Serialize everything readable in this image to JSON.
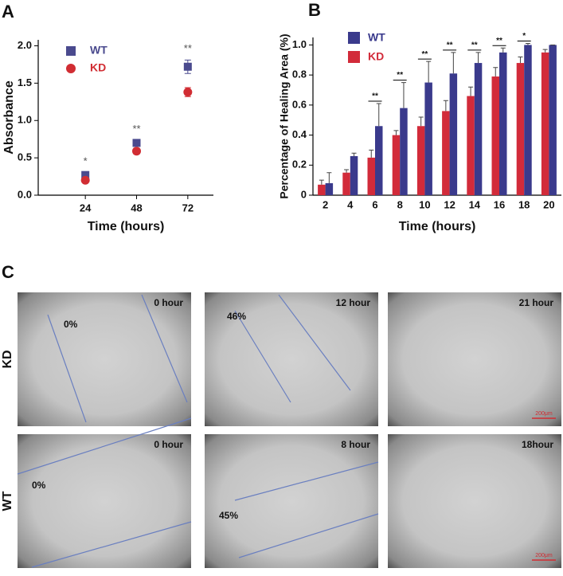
{
  "chart_data": [
    {
      "type": "scatter",
      "panel": "A",
      "y_label": "Absorbance",
      "x_label": "Time (hours)",
      "categories": [
        "24",
        "48",
        "72"
      ],
      "series": [
        {
          "name": "WT",
          "color": "#4a4a8e",
          "marker": "square",
          "values": [
            0.27,
            0.7,
            1.72
          ],
          "errors": [
            0.03,
            0.03,
            0.09
          ]
        },
        {
          "name": "KD",
          "color": "#d12d33",
          "marker": "circle",
          "values": [
            0.2,
            0.59,
            1.38
          ],
          "errors": [
            0.02,
            0.04,
            0.06
          ]
        }
      ],
      "annotations": [
        "*",
        "**",
        "**"
      ],
      "ylim": [
        0,
        2.08
      ],
      "yticks": [
        {
          "value": 0,
          "label": "0.0"
        },
        0.5,
        {
          "value": 1,
          "label": "1.0"
        },
        1.5,
        {
          "value": 2,
          "label": "2.0"
        }
      ]
    },
    {
      "type": "bar",
      "panel": "B",
      "y_label": "Percentage of Healing Area (%)",
      "x_label": "Time (hours)",
      "categories": [
        "2",
        "4",
        "6",
        "8",
        "10",
        "12",
        "14",
        "16",
        "18",
        "20"
      ],
      "series": [
        {
          "name": "KD",
          "color": "#d22b3a",
          "values": [
            0.07,
            0.15,
            0.25,
            0.4,
            0.46,
            0.56,
            0.66,
            0.79,
            0.88,
            0.95
          ],
          "errors": [
            0.03,
            0.02,
            0.05,
            0.03,
            0.06,
            0.07,
            0.06,
            0.06,
            0.04,
            0.02
          ]
        },
        {
          "name": "WT",
          "color": "#3a3a8c",
          "values": [
            0.08,
            0.26,
            0.46,
            0.58,
            0.75,
            0.81,
            0.88,
            0.95,
            1.0,
            1.0
          ],
          "errors": [
            0.07,
            0.02,
            0.15,
            0.17,
            0.14,
            0.14,
            0.07,
            0.03,
            0.01,
            0
          ]
        }
      ],
      "legend_order": [
        "WT",
        "KD"
      ],
      "annotations": [
        null,
        null,
        "**",
        "**",
        "**",
        "**",
        "**",
        "**",
        "*",
        null
      ],
      "ylim": [
        0,
        1.05
      ],
      "yticks": [
        0,
        0.2,
        0.4,
        0.6,
        0.8,
        {
          "value": 1,
          "label": "1.0"
        }
      ]
    }
  ],
  "panel_c": {
    "label": "C",
    "rows": [
      {
        "label": "KD",
        "images": [
          {
            "time": "0 hour",
            "area": "0%"
          },
          {
            "time": "12 hour",
            "area": "46%"
          },
          {
            "time": "21 hour",
            "scale": "200μm"
          }
        ]
      },
      {
        "label": "WT",
        "images": [
          {
            "time": "0 hour",
            "area": "0%"
          },
          {
            "time": "8 hour",
            "area": "45%"
          },
          {
            "time": "18hour",
            "scale": "200μm"
          }
        ]
      }
    ]
  }
}
